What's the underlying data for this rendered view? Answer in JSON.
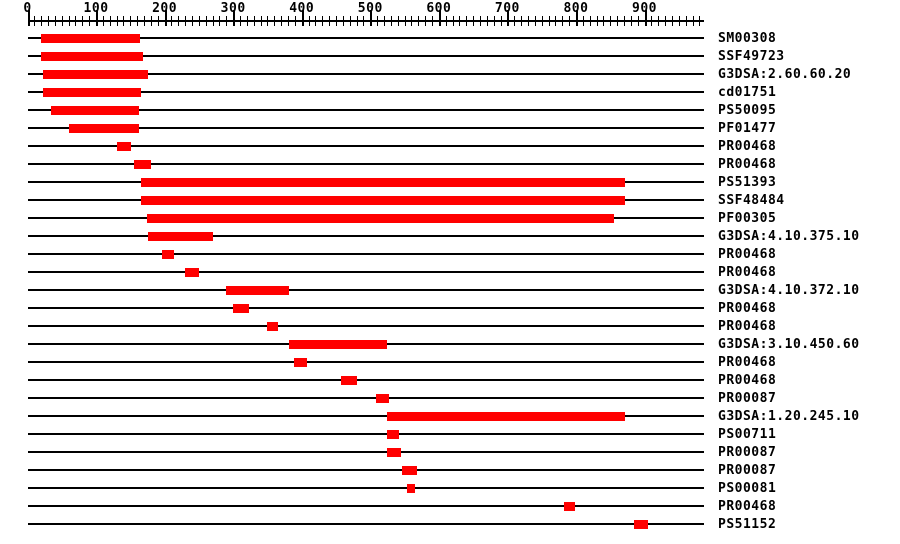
{
  "chart_data": {
    "type": "bar",
    "subtype": "horizontal-span-match-diagram",
    "title": "",
    "xlabel": "",
    "ylabel": "",
    "axis": {
      "min": 0,
      "max": 986,
      "major_tick_interval": 100,
      "minor_tick_interval": 10,
      "tick_labels": [
        "0",
        "100",
        "200",
        "300",
        "400",
        "500",
        "600",
        "700",
        "800",
        "900"
      ]
    },
    "bar_color": "#ff0000",
    "line_color": "#000000",
    "background_color": "#ffffff",
    "legend": "none",
    "grid": "off",
    "rows": [
      {
        "label": "SM00308",
        "start": 20,
        "end": 164
      },
      {
        "label": "SSF49723",
        "start": 19,
        "end": 168
      },
      {
        "label": "G3DSA:2.60.60.20",
        "start": 22,
        "end": 176
      },
      {
        "label": "cd01751",
        "start": 22,
        "end": 165
      },
      {
        "label": "PS50095",
        "start": 35,
        "end": 163
      },
      {
        "label": "PF01477",
        "start": 61,
        "end": 163
      },
      {
        "label": "PR00468",
        "start": 131,
        "end": 151
      },
      {
        "label": "PR00468",
        "start": 155,
        "end": 180
      },
      {
        "label": "PS51393",
        "start": 165,
        "end": 872
      },
      {
        "label": "SSF48484",
        "start": 166,
        "end": 871
      },
      {
        "label": "PF00305",
        "start": 174,
        "end": 855
      },
      {
        "label": "G3DSA:4.10.375.10",
        "start": 176,
        "end": 271
      },
      {
        "label": "PR00468",
        "start": 196,
        "end": 214
      },
      {
        "label": "PR00468",
        "start": 230,
        "end": 250
      },
      {
        "label": "G3DSA:4.10.372.10",
        "start": 290,
        "end": 381
      },
      {
        "label": "PR00468",
        "start": 300,
        "end": 323
      },
      {
        "label": "PR00468",
        "start": 349,
        "end": 366
      },
      {
        "label": "G3DSA:3.10.450.60",
        "start": 381,
        "end": 524
      },
      {
        "label": "PR00468",
        "start": 389,
        "end": 408
      },
      {
        "label": "PR00468",
        "start": 457,
        "end": 480
      },
      {
        "label": "PR00087",
        "start": 508,
        "end": 527
      },
      {
        "label": "G3DSA:1.20.245.10",
        "start": 525,
        "end": 872
      },
      {
        "label": "PS00711",
        "start": 525,
        "end": 542
      },
      {
        "label": "PR00087",
        "start": 525,
        "end": 545
      },
      {
        "label": "PR00087",
        "start": 546,
        "end": 568
      },
      {
        "label": "PS00081",
        "start": 554,
        "end": 565
      },
      {
        "label": "PR00468",
        "start": 783,
        "end": 799
      },
      {
        "label": "PS51152",
        "start": 885,
        "end": 905
      }
    ]
  }
}
